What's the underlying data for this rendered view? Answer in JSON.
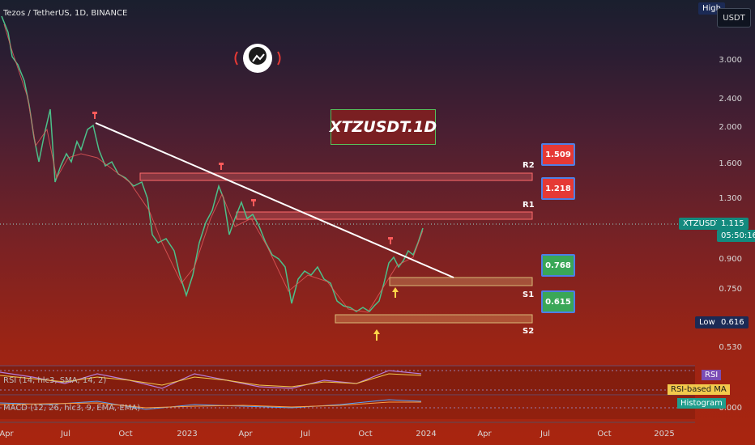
{
  "header": {
    "symbol_title": "Tezos / TetherUS, 1D, BINANCE"
  },
  "overlay": {
    "main_label": "XTZUSDT.1D"
  },
  "axis": {
    "currency_button": "USDT",
    "high_label": "High",
    "low_label": "Low",
    "low_value": "0.616",
    "price_ticks": [
      "3.000",
      "2.400",
      "2.000",
      "1.600",
      "1.300",
      "0.900",
      "0.750",
      "0.530",
      "0.00"
    ],
    "current_symbol": "XTZUSDT",
    "current_price": "1.115",
    "countdown": "05:50:16",
    "time_ticks": [
      "Apr",
      "Jul",
      "Oct",
      "2023",
      "Apr",
      "Jul",
      "Oct",
      "2024",
      "Apr",
      "Jul",
      "Oct",
      "2025"
    ],
    "indicator_zero": "0.000"
  },
  "levels": {
    "r2": {
      "name": "R2",
      "price": "1.509"
    },
    "r1": {
      "name": "R1",
      "price": "1.218"
    },
    "s1": {
      "name": "S1",
      "price": "0.768"
    },
    "s2": {
      "name": "S2",
      "price": "0.615"
    }
  },
  "indicators": {
    "rsi_label": "RSI (14, hlc3, SMA, 14, 2)",
    "rsi_tag": "RSI",
    "rsi_ma_tag": "RSI-based MA",
    "macd_label": "MACD (12, 26, hlc3, 9, EMA, EMA)",
    "hist_tag": "Histogram"
  },
  "colors": {
    "accent_green": "#3aa757",
    "accent_red": "#e53935",
    "callout_border": "#4d7fe6",
    "trendline": "#ffffff"
  }
}
